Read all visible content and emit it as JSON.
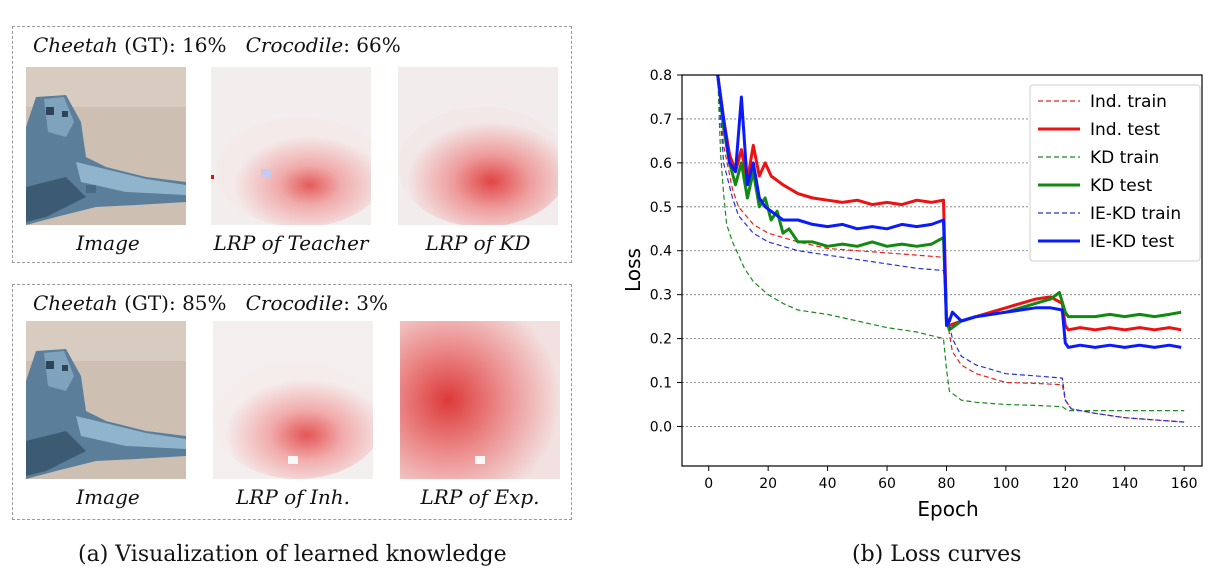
{
  "panel_a": {
    "top": {
      "cls1": "Cheetah",
      "gt": "(GT)",
      "p1": ": 16%",
      "cls2": "Crocodile",
      "p2": ": 66%",
      "captions": [
        "Image",
        "LRP of Teacher",
        "LRP of KD"
      ]
    },
    "bottom": {
      "cls1": "Cheetah",
      "gt": "(GT)",
      "p1": ": 85%",
      "cls2": "Crocodile",
      "p2": ": 3%",
      "captions": [
        "Image",
        "LRP of Inh.",
        "LRP of Exp."
      ]
    },
    "caption": "(a)  Visualization of learned knowledge"
  },
  "panel_b_caption": "(b)  Loss curves",
  "chart_data": {
    "type": "line",
    "xlabel": "Epoch",
    "ylabel": "Loss",
    "xlim": [
      -9,
      166
    ],
    "ylim": [
      -0.09,
      0.8
    ],
    "xticks": [
      0,
      20,
      40,
      60,
      80,
      100,
      120,
      140,
      160
    ],
    "yticks": [
      0.0,
      0.1,
      0.2,
      0.3,
      0.4,
      0.5,
      0.6,
      0.7,
      0.8
    ],
    "grid": "horizontal dotted",
    "legend_position": "top-right",
    "series": [
      {
        "name": "Ind. train",
        "color": "#e8221f",
        "style": "dashed",
        "width": 1.2,
        "x": [
          3,
          5,
          8,
          10,
          15,
          20,
          30,
          40,
          50,
          60,
          70,
          79,
          80,
          82,
          85,
          90,
          100,
          110,
          119,
          120,
          122,
          130,
          140,
          150,
          160
        ],
        "y": [
          0.8,
          0.64,
          0.54,
          0.5,
          0.46,
          0.44,
          0.42,
          0.405,
          0.4,
          0.395,
          0.39,
          0.385,
          0.25,
          0.17,
          0.14,
          0.12,
          0.1,
          0.098,
          0.095,
          0.06,
          0.04,
          0.03,
          0.02,
          0.015,
          0.01
        ]
      },
      {
        "name": "Ind. test",
        "color": "#ee1111",
        "style": "solid",
        "width": 3,
        "x": [
          3,
          5,
          7,
          9,
          11,
          13,
          15,
          17,
          19,
          21,
          25,
          30,
          35,
          40,
          45,
          50,
          55,
          60,
          65,
          70,
          75,
          79,
          80,
          81,
          85,
          90,
          95,
          100,
          105,
          110,
          115,
          119,
          120,
          121,
          125,
          130,
          135,
          140,
          145,
          150,
          155,
          159
        ],
        "y": [
          0.8,
          0.7,
          0.62,
          0.58,
          0.63,
          0.56,
          0.64,
          0.57,
          0.6,
          0.57,
          0.55,
          0.53,
          0.52,
          0.515,
          0.51,
          0.515,
          0.505,
          0.51,
          0.505,
          0.515,
          0.51,
          0.515,
          0.24,
          0.23,
          0.24,
          0.25,
          0.26,
          0.27,
          0.28,
          0.29,
          0.295,
          0.28,
          0.23,
          0.22,
          0.225,
          0.22,
          0.225,
          0.22,
          0.225,
          0.22,
          0.225,
          0.22
        ]
      },
      {
        "name": "KD train",
        "color": "#1b8a1b",
        "style": "dashed",
        "width": 1.2,
        "x": [
          3,
          4,
          5,
          6,
          8,
          10,
          12,
          15,
          20,
          25,
          30,
          40,
          50,
          60,
          70,
          79,
          80,
          81,
          83,
          85,
          90,
          100,
          110,
          119,
          120,
          121,
          125,
          130,
          140,
          150,
          160
        ],
        "y": [
          0.8,
          0.62,
          0.53,
          0.46,
          0.42,
          0.39,
          0.36,
          0.33,
          0.3,
          0.28,
          0.265,
          0.255,
          0.24,
          0.225,
          0.215,
          0.2,
          0.13,
          0.08,
          0.07,
          0.06,
          0.055,
          0.05,
          0.048,
          0.045,
          0.04,
          0.036,
          0.036,
          0.036,
          0.036,
          0.036,
          0.036
        ]
      },
      {
        "name": "KD test",
        "color": "#128a12",
        "style": "solid",
        "width": 3,
        "x": [
          3,
          5,
          7,
          9,
          11,
          13,
          15,
          17,
          19,
          21,
          23,
          25,
          27,
          30,
          35,
          40,
          45,
          50,
          55,
          60,
          65,
          70,
          75,
          79,
          80,
          81,
          85,
          90,
          95,
          100,
          105,
          110,
          115,
          118,
          120,
          121,
          125,
          130,
          135,
          140,
          145,
          150,
          155,
          159
        ],
        "y": [
          0.8,
          0.68,
          0.6,
          0.55,
          0.6,
          0.52,
          0.58,
          0.5,
          0.52,
          0.47,
          0.49,
          0.44,
          0.45,
          0.42,
          0.42,
          0.41,
          0.415,
          0.41,
          0.42,
          0.41,
          0.415,
          0.41,
          0.415,
          0.43,
          0.24,
          0.22,
          0.24,
          0.25,
          0.255,
          0.26,
          0.27,
          0.28,
          0.29,
          0.305,
          0.26,
          0.25,
          0.25,
          0.25,
          0.255,
          0.25,
          0.255,
          0.25,
          0.255,
          0.26
        ]
      },
      {
        "name": "IE-KD train",
        "color": "#2233dd",
        "style": "dashed",
        "width": 1.2,
        "x": [
          3,
          5,
          8,
          10,
          15,
          20,
          30,
          40,
          50,
          60,
          70,
          79,
          80,
          82,
          85,
          90,
          100,
          110,
          119,
          120,
          122,
          130,
          140,
          150,
          160
        ],
        "y": [
          0.8,
          0.6,
          0.52,
          0.48,
          0.44,
          0.42,
          0.4,
          0.39,
          0.38,
          0.37,
          0.36,
          0.355,
          0.26,
          0.2,
          0.16,
          0.14,
          0.12,
          0.115,
          0.11,
          0.06,
          0.04,
          0.03,
          0.02,
          0.015,
          0.01
        ]
      },
      {
        "name": "IE-KD test",
        "color": "#0a1aff",
        "style": "solid",
        "width": 3,
        "x": [
          3,
          5,
          7,
          9,
          11,
          13,
          15,
          17,
          19,
          21,
          25,
          30,
          35,
          40,
          45,
          50,
          55,
          60,
          65,
          70,
          75,
          79,
          80,
          81,
          82,
          85,
          90,
          95,
          100,
          105,
          110,
          115,
          119,
          120,
          121,
          125,
          130,
          135,
          140,
          145,
          150,
          155,
          159
        ],
        "y": [
          0.8,
          0.7,
          0.6,
          0.58,
          0.75,
          0.55,
          0.6,
          0.52,
          0.5,
          0.49,
          0.47,
          0.47,
          0.46,
          0.455,
          0.46,
          0.45,
          0.455,
          0.45,
          0.46,
          0.455,
          0.46,
          0.47,
          0.23,
          0.24,
          0.26,
          0.24,
          0.25,
          0.255,
          0.26,
          0.265,
          0.27,
          0.27,
          0.265,
          0.19,
          0.18,
          0.185,
          0.18,
          0.185,
          0.18,
          0.185,
          0.18,
          0.185,
          0.18
        ]
      }
    ]
  }
}
